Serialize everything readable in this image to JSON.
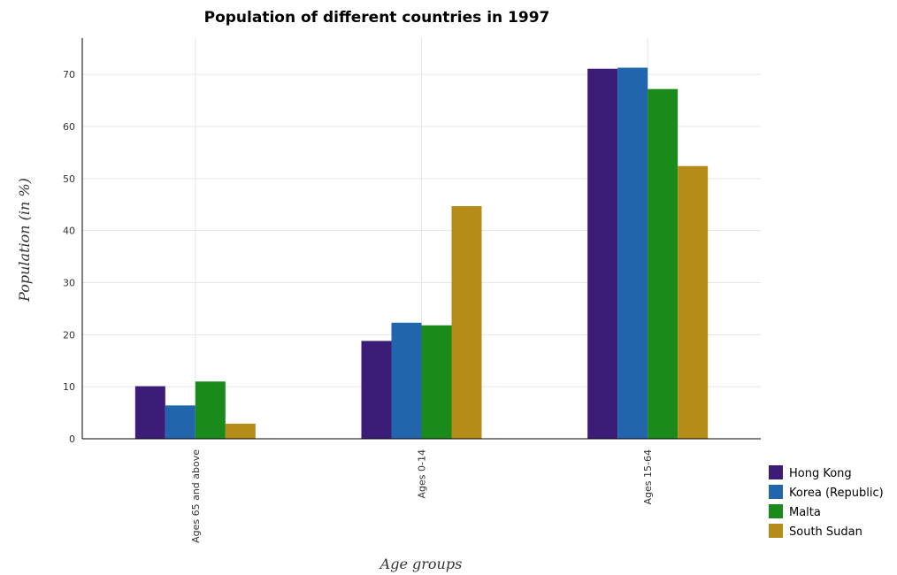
{
  "chart_data": {
    "type": "bar",
    "title": "Population of different countries in 1997",
    "xlabel": "Age groups",
    "ylabel": "Population (in %)",
    "categories": [
      "Ages 65 and above",
      "Ages 0-14",
      "Ages 15-64"
    ],
    "ylim": [
      0,
      77
    ],
    "yticks": [
      0,
      10,
      20,
      30,
      40,
      50,
      60,
      70
    ],
    "grid": true,
    "legend_position": "bottom-right",
    "series": [
      {
        "name": "Hong Kong",
        "color": "#3b1d78",
        "values": [
          10.1,
          18.8,
          71.1
        ]
      },
      {
        "name": "Korea (Republic)",
        "color": "#2166ac",
        "values": [
          6.4,
          22.3,
          71.3
        ]
      },
      {
        "name": "Malta",
        "color": "#1a8a1a",
        "values": [
          11.0,
          21.8,
          67.2
        ]
      },
      {
        "name": "South Sudan",
        "color": "#b58b1a",
        "values": [
          2.9,
          44.7,
          52.4
        ]
      }
    ]
  }
}
